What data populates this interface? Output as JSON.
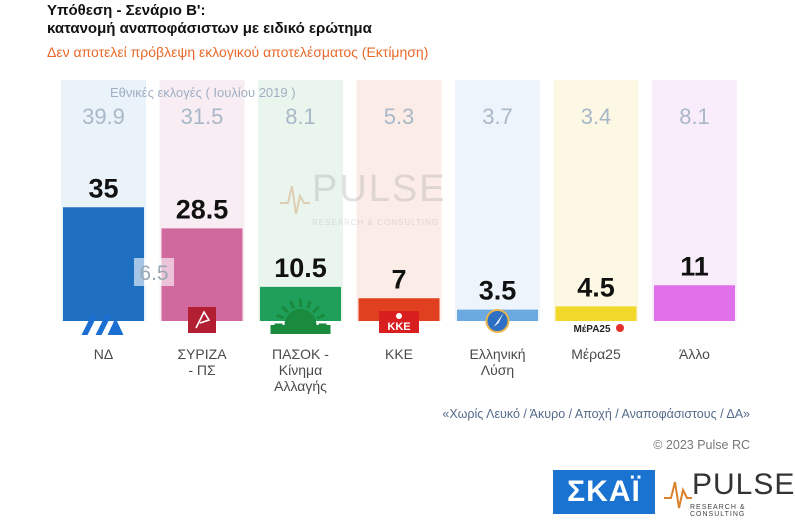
{
  "header": {
    "title_line1": "Υπόθεση - Σενάριο Β':",
    "title_line2": "κατανομή αναποφάσιστων με ειδικό ερώτημα",
    "subtitle": "Δεν αποτελεί πρόβλεψη εκλογικού αποτελέσματος    (Εκτίμηση)"
  },
  "election_label": "Εθνικές εκλογές  ( Ιουλίου 2019 )",
  "chart_data": {
    "type": "bar",
    "categories": [
      [
        "ΝΔ"
      ],
      [
        "ΣΥΡΙΖΑ",
        "- ΠΣ"
      ],
      [
        "ΠΑΣΟΚ -",
        "Κίνημα",
        "Αλλαγής"
      ],
      [
        "ΚΚΕ"
      ],
      [
        "Ελληνική",
        "Λύση"
      ],
      [
        "Μέρα25"
      ],
      [
        "Άλλο"
      ]
    ],
    "series": [
      {
        "values": [
          35,
          28.5,
          10.5,
          7,
          3.5,
          4.5,
          11
        ]
      },
      {
        "values": [
          39.9,
          31.5,
          8.1,
          5.3,
          3.7,
          3.4,
          8.1
        ]
      }
    ],
    "value_labels": [
      "35",
      "28.5",
      "10.5",
      "7",
      "3.5",
      "4.5",
      "11"
    ],
    "election_labels": [
      "39.9",
      "31.5",
      "8.1",
      "5.3",
      "3.7",
      "3.4",
      "8.1"
    ],
    "annotation": "6.5",
    "colors": [
      "#1f6fc1",
      "#d06a9e",
      "#1fa05a",
      "#e0401f",
      "#6aaae0",
      "#f2d82a",
      "#e070ea"
    ],
    "bg_colors": [
      "#eaf2fa",
      "#f8edf3",
      "#eaf5ee",
      "#fbece7",
      "#edf4fb",
      "#fcf8e4",
      "#f9ecfb"
    ],
    "ylim": [
      0,
      40
    ]
  },
  "party_logos": [
    "nd-logo",
    "syriza-logo",
    "pasok-logo",
    "kke-logo",
    "elliniki-lysi-logo",
    "mera25-logo",
    "none"
  ],
  "logo_texts": {
    "kke": "ΚΚΕ",
    "mera25": "ΜέΡΑ25"
  },
  "footnote": "«Χωρίς Λευκό / Άκυρο / Αποχή / Αναποφάσιστους / ΔΑ»",
  "copyright": "© 2023 Pulse RC",
  "brand": {
    "skai": "ΣΚΑΪ",
    "pulse": "PULSE",
    "pulse_tag": "RESEARCH & CONSULTING"
  }
}
